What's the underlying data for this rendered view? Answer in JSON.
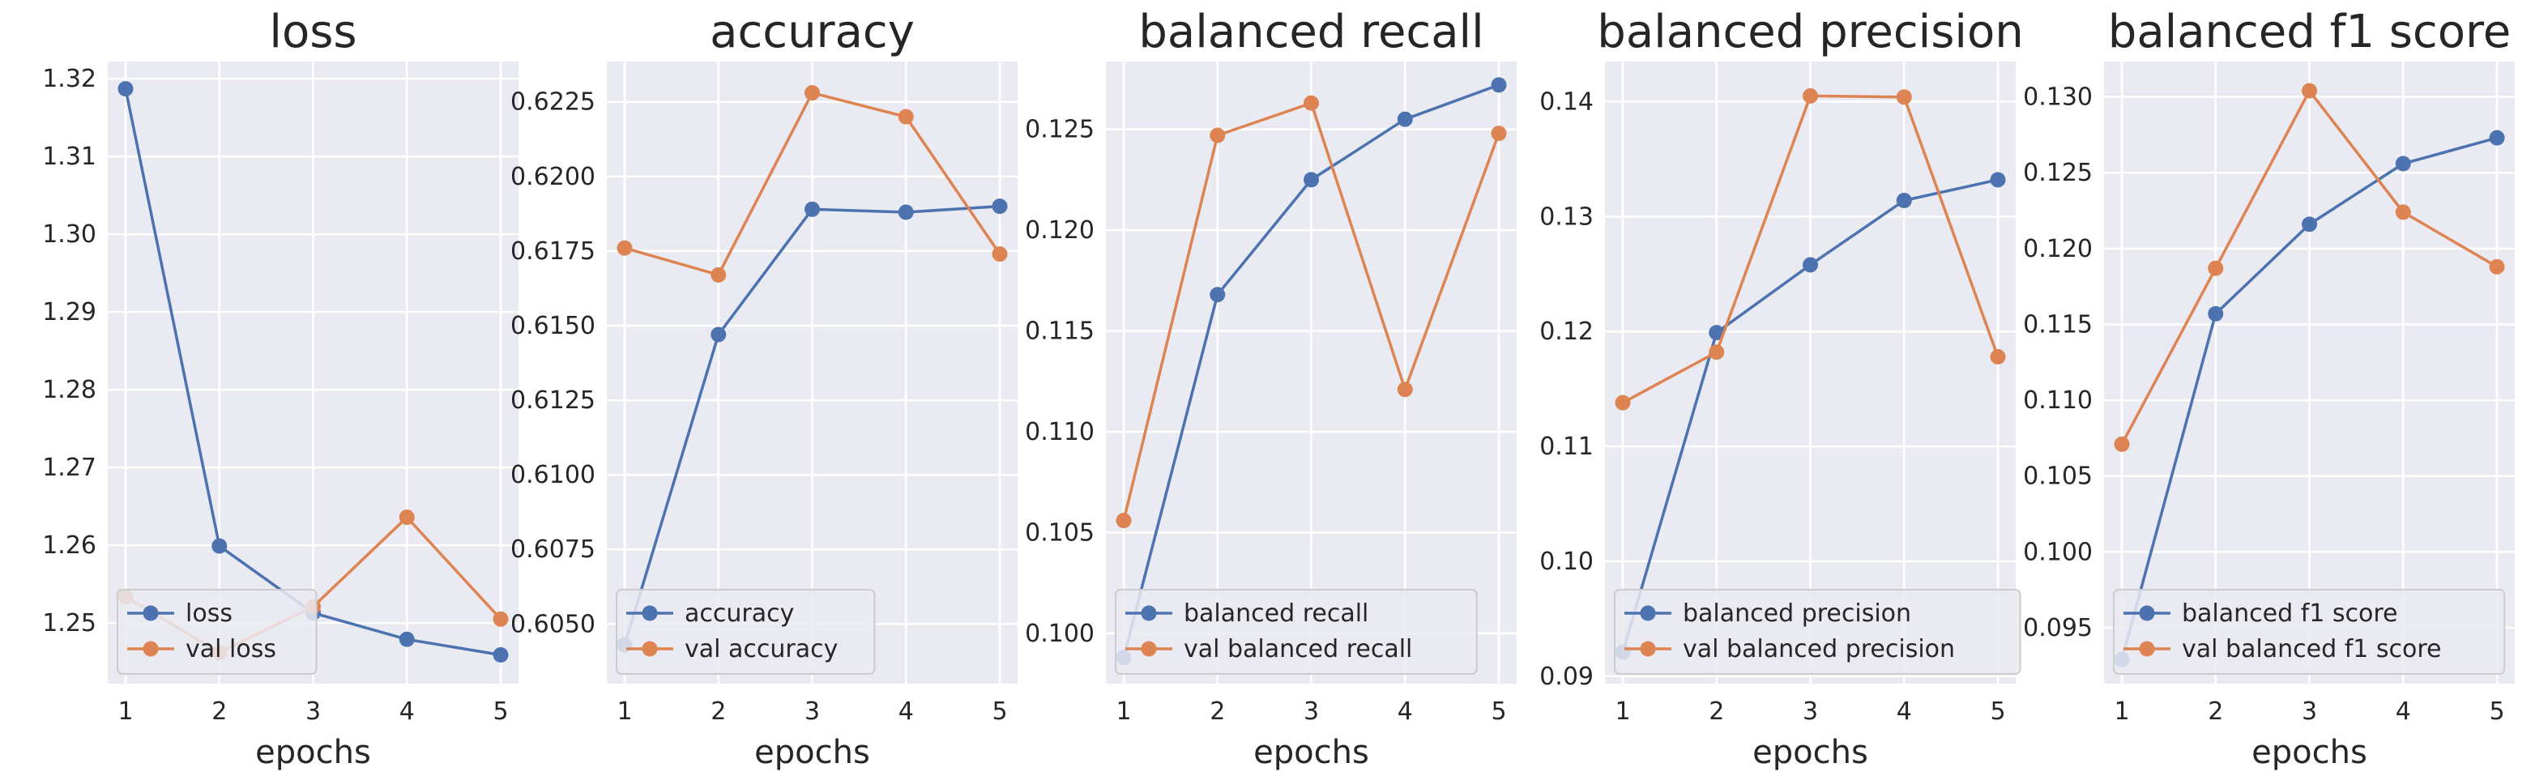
{
  "chart_data": [
    {
      "type": "line",
      "title": "loss",
      "xlabel": "epochs",
      "x": [
        1,
        2,
        3,
        4,
        5
      ],
      "xticks": [
        "1",
        "2",
        "3",
        "4",
        "5"
      ],
      "ylim": [
        1.2422,
        1.3222
      ],
      "yticks": [
        "1.25",
        "1.26",
        "1.27",
        "1.28",
        "1.29",
        "1.30",
        "1.31",
        "1.32"
      ],
      "ytick_values": [
        1.25,
        1.26,
        1.27,
        1.28,
        1.29,
        1.3,
        1.31,
        1.32
      ],
      "grid": true,
      "legend": "lower-left",
      "series": [
        {
          "name": "loss",
          "color": "#4c72b0",
          "values": [
            1.3187,
            1.2599,
            1.2513,
            1.2479,
            1.2459
          ]
        },
        {
          "name": "val loss",
          "color": "#dd8452",
          "values": [
            1.2534,
            1.2462,
            1.2521,
            1.2636,
            1.2505
          ]
        }
      ]
    },
    {
      "type": "line",
      "title": "accuracy",
      "xlabel": "epochs",
      "x": [
        1,
        2,
        3,
        4,
        5
      ],
      "xticks": [
        "1",
        "2",
        "3",
        "4",
        "5"
      ],
      "ylim": [
        0.603,
        0.62385
      ],
      "yticks": [
        "0.6050",
        "0.6075",
        "0.6100",
        "0.6125",
        "0.6150",
        "0.6175",
        "0.6200",
        "0.6225"
      ],
      "ytick_values": [
        0.605,
        0.6075,
        0.61,
        0.6125,
        0.615,
        0.6175,
        0.62,
        0.6225
      ],
      "grid": true,
      "legend": "lower-left",
      "series": [
        {
          "name": "accuracy",
          "color": "#4c72b0",
          "values": [
            0.6043,
            0.6147,
            0.6189,
            0.6188,
            0.619
          ]
        },
        {
          "name": "val accuracy",
          "color": "#dd8452",
          "values": [
            0.6176,
            0.6167,
            0.6228,
            0.622,
            0.6174
          ]
        }
      ]
    },
    {
      "type": "line",
      "title": "balanced recall",
      "xlabel": "epochs",
      "x": [
        1,
        2,
        3,
        4,
        5
      ],
      "xticks": [
        "1",
        "2",
        "3",
        "4",
        "5"
      ],
      "ylim": [
        0.09751,
        0.12836
      ],
      "yticks": [
        "0.100",
        "0.105",
        "0.110",
        "0.115",
        "0.120",
        "0.125"
      ],
      "ytick_values": [
        0.1,
        0.105,
        0.11,
        0.115,
        0.12,
        0.125
      ],
      "grid": true,
      "legend": "lower-left",
      "series": [
        {
          "name": "balanced recall",
          "color": "#4c72b0",
          "values": [
            0.0988,
            0.1168,
            0.1225,
            0.1255,
            0.1272
          ]
        },
        {
          "name": "val balanced recall",
          "color": "#dd8452",
          "values": [
            0.1056,
            0.1247,
            0.1263,
            0.1121,
            0.1248
          ]
        }
      ]
    },
    {
      "type": "line",
      "title": "balanced precision",
      "xlabel": "epochs",
      "x": [
        1,
        2,
        3,
        4,
        5
      ],
      "xticks": [
        "1",
        "2",
        "3",
        "4",
        "5"
      ],
      "ylim": [
        0.08935,
        0.14349
      ],
      "yticks": [
        "0.09",
        "0.10",
        "0.11",
        "0.12",
        "0.13",
        "0.14"
      ],
      "ytick_values": [
        0.09,
        0.1,
        0.11,
        0.12,
        0.13,
        0.14
      ],
      "grid": true,
      "legend": "lower-left",
      "series": [
        {
          "name": "balanced precision",
          "color": "#4c72b0",
          "values": [
            0.0921,
            0.1199,
            0.1258,
            0.1314,
            0.1332
          ]
        },
        {
          "name": "val balanced precision",
          "color": "#dd8452",
          "values": [
            0.1138,
            0.1182,
            0.1405,
            0.1404,
            0.1178
          ]
        }
      ]
    },
    {
      "type": "line",
      "title": "balanced f1 score",
      "xlabel": "epochs",
      "x": [
        1,
        2,
        3,
        4,
        5
      ],
      "xticks": [
        "1",
        "2",
        "3",
        "4",
        "5"
      ],
      "ylim": [
        0.09131,
        0.13233
      ],
      "yticks": [
        "0.095",
        "0.100",
        "0.105",
        "0.110",
        "0.115",
        "0.120",
        "0.125",
        "0.130"
      ],
      "ytick_values": [
        0.095,
        0.1,
        0.105,
        0.11,
        0.115,
        0.12,
        0.125,
        0.13
      ],
      "grid": true,
      "legend": "lower-left",
      "series": [
        {
          "name": "balanced f1 score",
          "color": "#4c72b0",
          "values": [
            0.0929,
            0.1157,
            0.1216,
            0.1256,
            0.1273
          ]
        },
        {
          "name": "val balanced f1 score",
          "color": "#dd8452",
          "values": [
            0.1071,
            0.1187,
            0.1304,
            0.1224,
            0.1188
          ]
        }
      ]
    }
  ]
}
